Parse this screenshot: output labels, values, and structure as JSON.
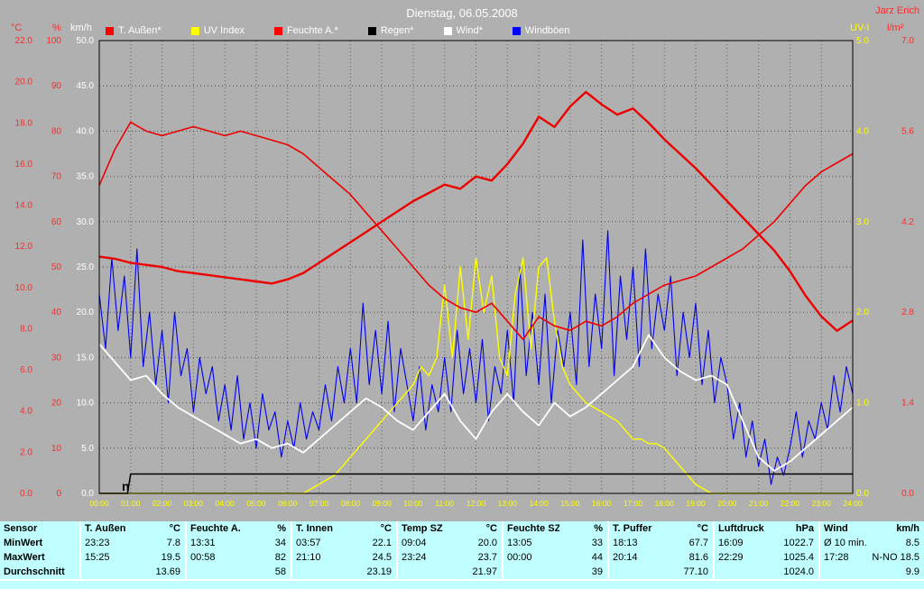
{
  "header": {
    "owner": "Jarz Erich"
  },
  "legend": [
    {
      "label": "T. Außen*",
      "color": "#ff0000"
    },
    {
      "label": "UV Index",
      "color": "#ffff00"
    },
    {
      "label": "Feuchte A.*",
      "color": "#ff0000"
    },
    {
      "label": "Regen*",
      "color": "#000000"
    },
    {
      "label": "Wind*",
      "color": "#ffffff"
    },
    {
      "label": "Windböen",
      "color": "#0000ff"
    }
  ],
  "chart_data": {
    "type": "line",
    "title": "Dienstag, 06.05.2008",
    "x_range": [
      0,
      24
    ],
    "x_unit": "hour",
    "grid": {
      "h_divisions": 10,
      "v_divisions": 24,
      "style": "dotted"
    },
    "x_tick_labels": [
      "00:00",
      "01:00",
      "02:00",
      "03:00",
      "04:00",
      "05:00",
      "06:00",
      "07:00",
      "08:00",
      "09:00",
      "10:00",
      "11:00",
      "12:00",
      "13:00",
      "14:00",
      "15:00",
      "16:00",
      "17:00",
      "18:00",
      "19:00",
      "20:00",
      "21:00",
      "22:00",
      "23:00",
      "24:00"
    ],
    "axes": {
      "c": {
        "name": "°C",
        "color": "#ff2a2a",
        "max": 22,
        "ticks": [
          "22.0",
          "20.0",
          "18.0",
          "16.0",
          "14.0",
          "12.0",
          "10.0",
          "8.0",
          "6.0",
          "4.0",
          "2.0",
          "0.0"
        ]
      },
      "pct": {
        "name": "%",
        "color": "#ff2a2a",
        "max": 100,
        "ticks": [
          "100",
          "90",
          "80",
          "70",
          "60",
          "50",
          "40",
          "30",
          "20",
          "10",
          "0"
        ]
      },
      "kmh": {
        "name": "km/h",
        "color": "#ffffff",
        "max": 50,
        "ticks": [
          "50.0",
          "45.0",
          "40.0",
          "35.0",
          "30.0",
          "25.0",
          "20.0",
          "15.0",
          "10.0",
          "5.0",
          "0.0"
        ]
      },
      "uv": {
        "name": "UV-I",
        "color": "#ffff00",
        "max": 5,
        "ticks": [
          "5.0",
          "4.0",
          "3.0",
          "2.0",
          "1.0",
          "0.0"
        ]
      },
      "lm2": {
        "name": "l/m²",
        "color": "#ff2a2a",
        "max": 7,
        "ticks": [
          "7.0",
          "5.6",
          "4.2",
          "2.8",
          "1.4",
          "0.0"
        ]
      }
    },
    "series": [
      {
        "name": "Windböen",
        "unit": "km/h",
        "axis": "kmh",
        "color": "#0000ee",
        "width": 1.1,
        "values": [
          22,
          16,
          26,
          18,
          24,
          15,
          27,
          14,
          20,
          12,
          18,
          10,
          20,
          13,
          16,
          9,
          15,
          11,
          14,
          8,
          12,
          7,
          13,
          6,
          10,
          5,
          11,
          7,
          9,
          4,
          8,
          5,
          10,
          6,
          9,
          7,
          12,
          8,
          14,
          10,
          16,
          10,
          21,
          12,
          18,
          11,
          19,
          9,
          16,
          12,
          8,
          14,
          7,
          12,
          9,
          15,
          9,
          18,
          11,
          16,
          10,
          17,
          8,
          14,
          11,
          18,
          10,
          25,
          13,
          20,
          12,
          22,
          10,
          18,
          14,
          20,
          12,
          28,
          14,
          22,
          16,
          29,
          13,
          24,
          17,
          25,
          14,
          27,
          16,
          22,
          18,
          24,
          13,
          20,
          15,
          21,
          12,
          18,
          10,
          15,
          12,
          6,
          10,
          4,
          8,
          3,
          6,
          1,
          4,
          2,
          5,
          9,
          4,
          8,
          6,
          10,
          7,
          13,
          9,
          14,
          11
        ]
      },
      {
        "name": "UV Index",
        "unit": "UV-I",
        "axis": "uv",
        "color": "#ffff00",
        "width": 1.4,
        "values": [
          0,
          0,
          0,
          0,
          0,
          0,
          0,
          0,
          0,
          0,
          0,
          0,
          0,
          0,
          0,
          0,
          0,
          0,
          0,
          0,
          0,
          0,
          0,
          0,
          0,
          0,
          0,
          0.05,
          0.1,
          0.15,
          0.2,
          0.3,
          0.4,
          0.5,
          0.6,
          0.7,
          0.8,
          0.9,
          1.0,
          1.1,
          1.2,
          1.4,
          1.3,
          1.5,
          2.3,
          1.5,
          2.5,
          1.7,
          2.6,
          2.0,
          2.4,
          1.5,
          1.3,
          2.2,
          2.6,
          1.6,
          2.5,
          2.6,
          1.9,
          1.4,
          1.2,
          1.1,
          1.0,
          0.95,
          0.9,
          0.85,
          0.8,
          0.7,
          0.6,
          0.6,
          0.55,
          0.55,
          0.5,
          0.4,
          0.3,
          0.2,
          0.1,
          0.05,
          0,
          0,
          0,
          0,
          0,
          0,
          0,
          0,
          0,
          0,
          0,
          0,
          0,
          0,
          0,
          0,
          0,
          0,
          0
        ]
      },
      {
        "name": "Wind",
        "unit": "km/h",
        "axis": "kmh",
        "color": "#ffffff",
        "width": 1.8,
        "values": [
          16.5,
          14.5,
          12.5,
          13.0,
          11.0,
          9.5,
          8.5,
          7.5,
          6.5,
          5.5,
          6.0,
          5.0,
          5.5,
          4.5,
          6.0,
          7.5,
          9.0,
          10.5,
          9.5,
          8.0,
          7.0,
          9.0,
          11.0,
          8.0,
          6.0,
          9.0,
          11.0,
          9.0,
          7.5,
          10.0,
          8.5,
          9.5,
          11.0,
          12.5,
          14.0,
          17.5,
          15.0,
          13.5,
          12.5,
          13.0,
          12.0,
          8.0,
          4.0,
          2.5,
          3.5,
          5.0,
          6.5,
          8.0,
          9.5
        ]
      },
      {
        "name": "Feuchte A.",
        "unit": "%",
        "axis": "pct",
        "color": "#ee0000",
        "width": 1.6,
        "values": [
          68,
          76,
          82,
          80,
          79,
          80,
          81,
          80,
          79,
          80,
          79,
          78,
          77,
          75,
          72,
          69,
          66,
          62,
          58,
          54,
          50,
          46,
          43,
          41,
          40,
          42,
          38,
          34,
          39,
          37,
          36,
          38,
          37,
          39,
          42,
          44,
          46,
          47,
          48,
          50,
          52,
          54,
          57,
          60,
          64,
          68,
          71,
          73,
          75
        ]
      },
      {
        "name": "T. Außen",
        "unit": "°C",
        "axis": "c",
        "color": "#ee0000",
        "width": 2.4,
        "values": [
          11.5,
          11.4,
          11.2,
          11.1,
          11.0,
          10.8,
          10.7,
          10.6,
          10.5,
          10.4,
          10.3,
          10.2,
          10.4,
          10.7,
          11.2,
          11.7,
          12.2,
          12.7,
          13.2,
          13.7,
          14.2,
          14.6,
          15.0,
          14.8,
          15.4,
          15.2,
          16.0,
          17.0,
          18.3,
          17.8,
          18.8,
          19.5,
          18.9,
          18.4,
          18.7,
          18.0,
          17.2,
          16.5,
          15.8,
          15.0,
          14.2,
          13.4,
          12.6,
          11.8,
          10.8,
          9.6,
          8.6,
          7.9,
          8.4
        ]
      },
      {
        "name": "Regen",
        "unit": "l/m²",
        "axis": "lm2",
        "color": "#000000",
        "width": 1.5,
        "x": [
          0,
          0.9,
          1.0,
          24
        ],
        "values": [
          0,
          0,
          0.3,
          0.3
        ]
      }
    ],
    "rain_marker": {
      "text": "n",
      "x": 0.72,
      "value": 0.04,
      "axis": "lm2"
    }
  },
  "table": {
    "row_labels": [
      "Sensor",
      "MinWert",
      "MaxWert",
      "Durchschnitt"
    ],
    "groups": [
      {
        "name": "T. Außen",
        "unit": "°C",
        "min": [
          "23:23",
          "7.8"
        ],
        "max": [
          "15:25",
          "19.5"
        ],
        "avg": "13.69"
      },
      {
        "name": "Feuchte A.",
        "unit": "%",
        "min": [
          "13:31",
          "34"
        ],
        "max": [
          "00:58",
          "82"
        ],
        "avg": "58"
      },
      {
        "name": "T. Innen",
        "unit": "°C",
        "min": [
          "03:57",
          "22.1"
        ],
        "max": [
          "21:10",
          "24.5"
        ],
        "avg": "23.19"
      },
      {
        "name": "Temp SZ",
        "unit": "°C",
        "min": [
          "09:04",
          "20.0"
        ],
        "max": [
          "23:24",
          "23.7"
        ],
        "avg": "21.97"
      },
      {
        "name": "Feuchte SZ",
        "unit": "%",
        "min": [
          "13:05",
          "33"
        ],
        "max": [
          "00:00",
          "44"
        ],
        "avg": "39"
      },
      {
        "name": "T. Puffer",
        "unit": "°C",
        "min": [
          "18:13",
          "67.7"
        ],
        "max": [
          "20:14",
          "81.6"
        ],
        "avg": "77.10"
      },
      {
        "name": "Luftdruck",
        "unit": "hPa",
        "min": [
          "16:09",
          "1022.7"
        ],
        "max": [
          "22:29",
          "1025.4"
        ],
        "avg": "1024.0"
      },
      {
        "name": "Wind",
        "unit": "km/h",
        "min": [
          "Ø 10 min.",
          "8.5"
        ],
        "max": [
          "17:28",
          "N-NO 18.5"
        ],
        "avg": "9.9"
      }
    ]
  }
}
